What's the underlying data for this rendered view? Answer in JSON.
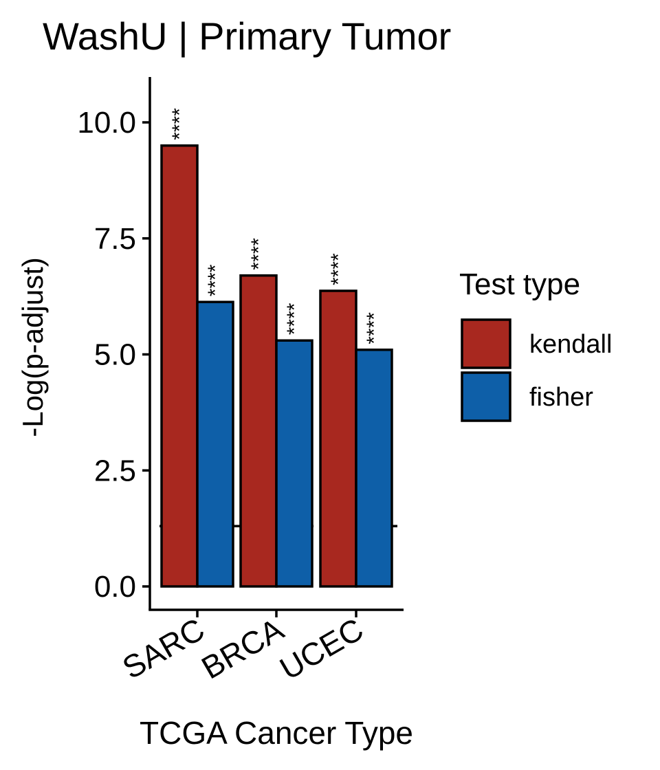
{
  "chart_data": {
    "type": "bar",
    "title": "WashU | Primary Tumor",
    "xlabel": "TCGA Cancer Type",
    "ylabel": "-Log(p-adjust)",
    "categories": [
      "SARC",
      "BRCA",
      "UCEC"
    ],
    "series": [
      {
        "name": "kendall",
        "values": [
          9.5,
          6.7,
          6.37
        ],
        "labels": [
          "****",
          "****",
          "****"
        ]
      },
      {
        "name": "fisher",
        "values": [
          6.13,
          5.3,
          5.1
        ],
        "labels": [
          "****",
          "****",
          "****"
        ]
      }
    ],
    "ylim": [
      -0.5,
      11.0
    ],
    "yticks": [
      0.0,
      2.5,
      5.0,
      7.5,
      10.0
    ],
    "ytick_labels": [
      "0.0",
      "2.5",
      "5.0",
      "7.5",
      "10.0"
    ],
    "reference_line": {
      "y": 1.3,
      "style": "dashed"
    },
    "legend": {
      "title": "Test type",
      "position": "right"
    },
    "colors": {
      "kendall": "#A8281F",
      "fisher": "#0E5FA8"
    },
    "grid": false
  }
}
